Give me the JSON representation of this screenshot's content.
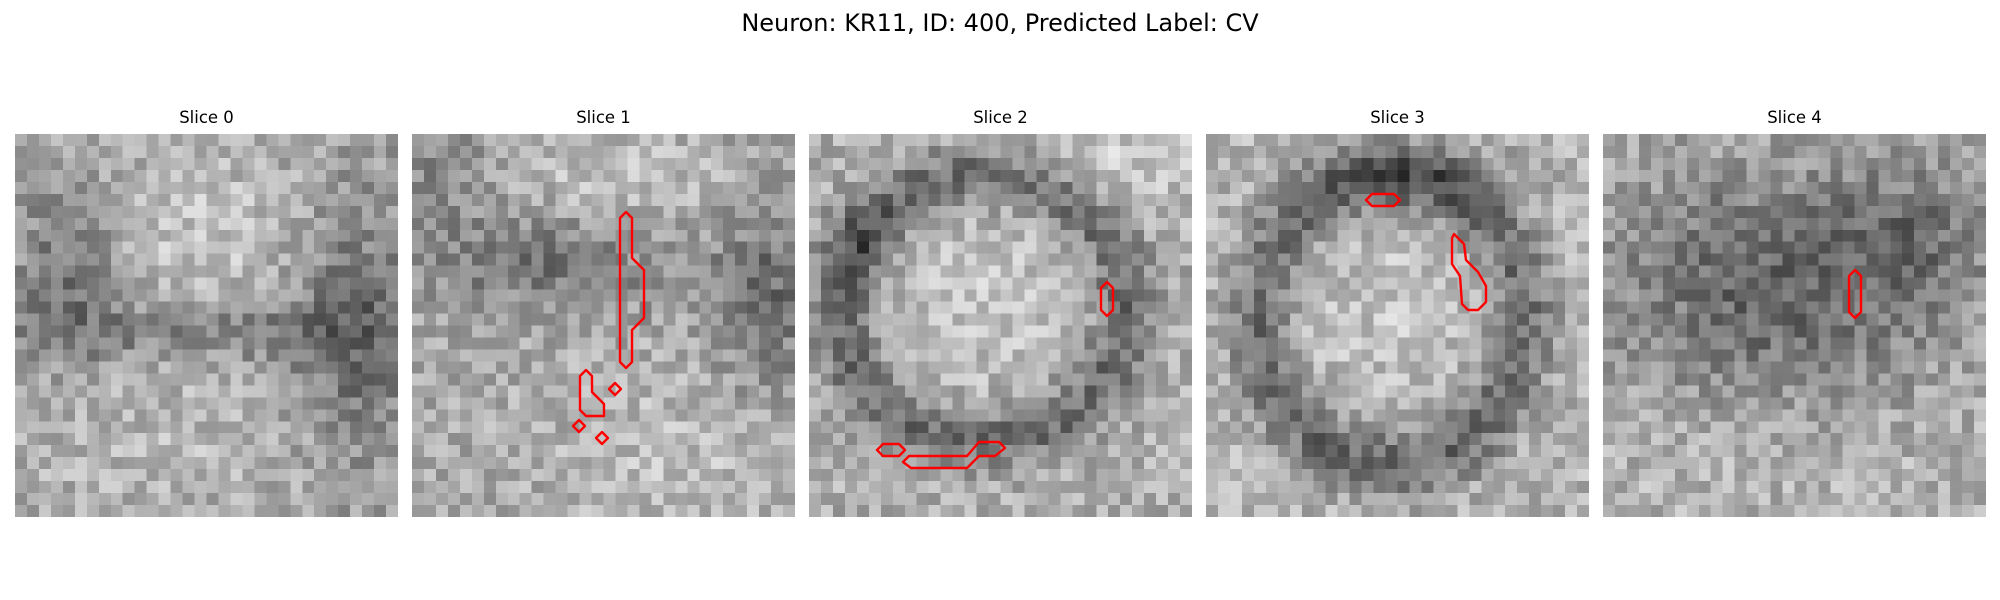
{
  "figure": {
    "title": "Neuron: KR11, ID: 400, Predicted Label: CV"
  },
  "panels": [
    {
      "title": "Slice 0"
    },
    {
      "title": "Slice 1"
    },
    {
      "title": "Slice 2"
    },
    {
      "title": "Slice 3"
    },
    {
      "title": "Slice 4"
    }
  ],
  "colors": {
    "contour": "#ff0000",
    "colormap": "gray"
  }
}
